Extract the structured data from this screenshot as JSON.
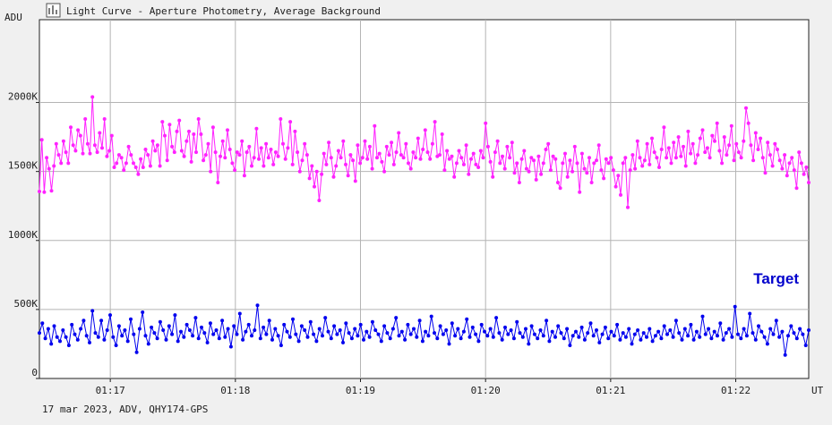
{
  "window": {
    "title": "Light Curve - Aperture Photometry, Average Background",
    "footer": "17 mar 2023, ADV, QHY174-GPS",
    "icon": "chart-icon"
  },
  "colors": {
    "background": "#f0f0f0",
    "plot_background": "#ffffff",
    "grid": "#b4b4b4",
    "axis": "#202020",
    "comparison_series": "#ff22ff",
    "target_series": "#0000ee",
    "legend_text": "#0000cc"
  },
  "chart_data": {
    "type": "line",
    "title": "Light Curve - Aperture Photometry, Average Background",
    "subtitle": "17 mar 2023, ADV, QHY174-GPS",
    "xlabel": "UT",
    "ylabel": "ADU",
    "x_ticks": [
      "01:17",
      "01:18",
      "01:19",
      "01:20",
      "01:21",
      "01:22"
    ],
    "y_ticks": [
      "0",
      "500K",
      "1000K",
      "1500K",
      "2000K"
    ],
    "ylim": [
      0,
      2600000
    ],
    "xlim": [
      "01:16:26",
      "01:22:35"
    ],
    "grid": true,
    "markers": "dots",
    "legend": {
      "placement": "right",
      "entries": [
        "Target"
      ]
    },
    "series": [
      {
        "name": "",
        "role": "comparison",
        "color": "#ff22ff",
        "x_start": "01:16:26",
        "x_end": "01:22:35",
        "mean": 1580000,
        "values": [
          1355000,
          1730000,
          1350000,
          1600000,
          1520000,
          1360000,
          1540000,
          1700000,
          1620000,
          1560000,
          1720000,
          1640000,
          1560000,
          1820000,
          1690000,
          1650000,
          1800000,
          1760000,
          1630000,
          1880000,
          1700000,
          1630000,
          2040000,
          1690000,
          1640000,
          1780000,
          1670000,
          1880000,
          1610000,
          1650000,
          1760000,
          1530000,
          1560000,
          1620000,
          1600000,
          1510000,
          1560000,
          1680000,
          1620000,
          1560000,
          1530000,
          1480000,
          1590000,
          1530000,
          1660000,
          1620000,
          1540000,
          1720000,
          1650000,
          1690000,
          1540000,
          1860000,
          1760000,
          1580000,
          1840000,
          1680000,
          1640000,
          1790000,
          1870000,
          1650000,
          1610000,
          1720000,
          1790000,
          1570000,
          1770000,
          1640000,
          1880000,
          1770000,
          1580000,
          1620000,
          1700000,
          1500000,
          1820000,
          1640000,
          1420000,
          1610000,
          1720000,
          1600000,
          1800000,
          1660000,
          1560000,
          1510000,
          1640000,
          1620000,
          1720000,
          1470000,
          1640000,
          1680000,
          1540000,
          1600000,
          1810000,
          1590000,
          1670000,
          1540000,
          1700000,
          1600000,
          1660000,
          1550000,
          1640000,
          1610000,
          1880000,
          1700000,
          1590000,
          1670000,
          1860000,
          1550000,
          1790000,
          1640000,
          1500000,
          1580000,
          1700000,
          1620000,
          1450000,
          1540000,
          1390000,
          1500000,
          1290000,
          1480000,
          1630000,
          1550000,
          1710000,
          1600000,
          1460000,
          1540000,
          1650000,
          1600000,
          1720000,
          1550000,
          1470000,
          1620000,
          1580000,
          1430000,
          1690000,
          1560000,
          1600000,
          1720000,
          1590000,
          1680000,
          1520000,
          1830000,
          1600000,
          1630000,
          1570000,
          1500000,
          1680000,
          1620000,
          1710000,
          1550000,
          1640000,
          1780000,
          1620000,
          1600000,
          1700000,
          1560000,
          1520000,
          1640000,
          1600000,
          1740000,
          1590000,
          1660000,
          1800000,
          1640000,
          1590000,
          1700000,
          1860000,
          1610000,
          1620000,
          1770000,
          1510000,
          1650000,
          1590000,
          1610000,
          1460000,
          1560000,
          1650000,
          1600000,
          1550000,
          1690000,
          1480000,
          1590000,
          1630000,
          1550000,
          1530000,
          1650000,
          1600000,
          1850000,
          1680000,
          1570000,
          1460000,
          1640000,
          1720000,
          1560000,
          1610000,
          1520000,
          1680000,
          1600000,
          1710000,
          1490000,
          1560000,
          1420000,
          1590000,
          1650000,
          1520000,
          1500000,
          1600000,
          1580000,
          1440000,
          1610000,
          1480000,
          1560000,
          1660000,
          1700000,
          1510000,
          1610000,
          1590000,
          1420000,
          1380000,
          1560000,
          1630000,
          1460000,
          1580000,
          1500000,
          1680000,
          1560000,
          1350000,
          1630000,
          1520000,
          1490000,
          1600000,
          1420000,
          1560000,
          1580000,
          1690000,
          1510000,
          1450000,
          1590000,
          1560000,
          1600000,
          1510000,
          1390000,
          1470000,
          1330000,
          1560000,
          1600000,
          1240000,
          1510000,
          1620000,
          1520000,
          1720000,
          1600000,
          1540000,
          1580000,
          1700000,
          1550000,
          1740000,
          1640000,
          1600000,
          1530000,
          1660000,
          1820000,
          1600000,
          1670000,
          1560000,
          1710000,
          1600000,
          1750000,
          1610000,
          1680000,
          1540000,
          1790000,
          1630000,
          1700000,
          1560000,
          1620000,
          1740000,
          1800000,
          1640000,
          1670000,
          1600000,
          1760000,
          1720000,
          1850000,
          1650000,
          1560000,
          1750000,
          1620000,
          1690000,
          1830000,
          1580000,
          1700000,
          1640000,
          1600000,
          1720000,
          1960000,
          1850000,
          1690000,
          1580000,
          1780000,
          1660000,
          1740000,
          1600000,
          1490000,
          1710000,
          1620000,
          1540000,
          1700000,
          1660000,
          1580000,
          1520000,
          1620000,
          1470000,
          1560000,
          1600000,
          1510000,
          1380000,
          1640000,
          1560000,
          1480000,
          1530000,
          1420000
        ]
      },
      {
        "name": "Target",
        "role": "target",
        "color": "#0000ee",
        "x_start": "01:16:26",
        "x_end": "01:22:35",
        "mean": 340000,
        "values": [
          330000,
          400000,
          290000,
          360000,
          250000,
          380000,
          300000,
          270000,
          350000,
          300000,
          240000,
          390000,
          320000,
          280000,
          360000,
          420000,
          310000,
          260000,
          490000,
          330000,
          300000,
          420000,
          280000,
          350000,
          460000,
          300000,
          240000,
          380000,
          310000,
          350000,
          270000,
          430000,
          320000,
          190000,
          360000,
          480000,
          310000,
          250000,
          370000,
          330000,
          290000,
          410000,
          350000,
          280000,
          380000,
          320000,
          460000,
          270000,
          340000,
          300000,
          390000,
          350000,
          310000,
          440000,
          290000,
          370000,
          330000,
          260000,
          400000,
          320000,
          350000,
          290000,
          420000,
          300000,
          360000,
          230000,
          380000,
          320000,
          470000,
          280000,
          340000,
          390000,
          310000,
          350000,
          530000,
          290000,
          370000,
          320000,
          420000,
          280000,
          360000,
          310000,
          240000,
          390000,
          340000,
          300000,
          430000,
          320000,
          270000,
          380000,
          350000,
          300000,
          410000,
          320000,
          270000,
          360000,
          310000,
          440000,
          340000,
          290000,
          380000,
          320000,
          350000,
          260000,
          400000,
          330000,
          290000,
          360000,
          310000,
          390000,
          280000,
          340000,
          300000,
          410000,
          350000,
          320000,
          270000,
          380000,
          330000,
          290000,
          360000,
          440000,
          310000,
          340000,
          280000,
          390000,
          320000,
          360000,
          300000,
          420000,
          270000,
          340000,
          310000,
          450000,
          330000,
          290000,
          380000,
          320000,
          350000,
          250000,
          400000,
          310000,
          360000,
          290000,
          340000,
          430000,
          300000,
          370000,
          320000,
          270000,
          390000,
          340000,
          310000,
          360000,
          300000,
          440000,
          330000,
          280000,
          370000,
          320000,
          350000,
          290000,
          410000,
          330000,
          300000,
          360000,
          250000,
          380000,
          320000,
          290000,
          350000,
          310000,
          420000,
          270000,
          340000,
          300000,
          380000,
          330000,
          290000,
          360000,
          240000,
          310000,
          340000,
          300000,
          370000,
          280000,
          330000,
          400000,
          310000,
          350000,
          260000,
          320000,
          370000,
          290000,
          340000,
          310000,
          390000,
          280000,
          330000,
          300000,
          360000,
          250000,
          320000,
          350000,
          280000,
          330000,
          300000,
          360000,
          270000,
          310000,
          340000,
          290000,
          380000,
          320000,
          350000,
          300000,
          420000,
          330000,
          280000,
          360000,
          310000,
          390000,
          280000,
          340000,
          300000,
          450000,
          320000,
          360000,
          290000,
          340000,
          310000,
          400000,
          280000,
          330000,
          360000,
          300000,
          520000,
          320000,
          290000,
          360000,
          310000,
          470000,
          330000,
          280000,
          380000,
          340000,
          300000,
          250000,
          360000,
          320000,
          420000,
          300000,
          340000,
          170000,
          310000,
          380000,
          330000,
          290000,
          360000,
          320000,
          240000,
          350000
        ]
      }
    ]
  }
}
